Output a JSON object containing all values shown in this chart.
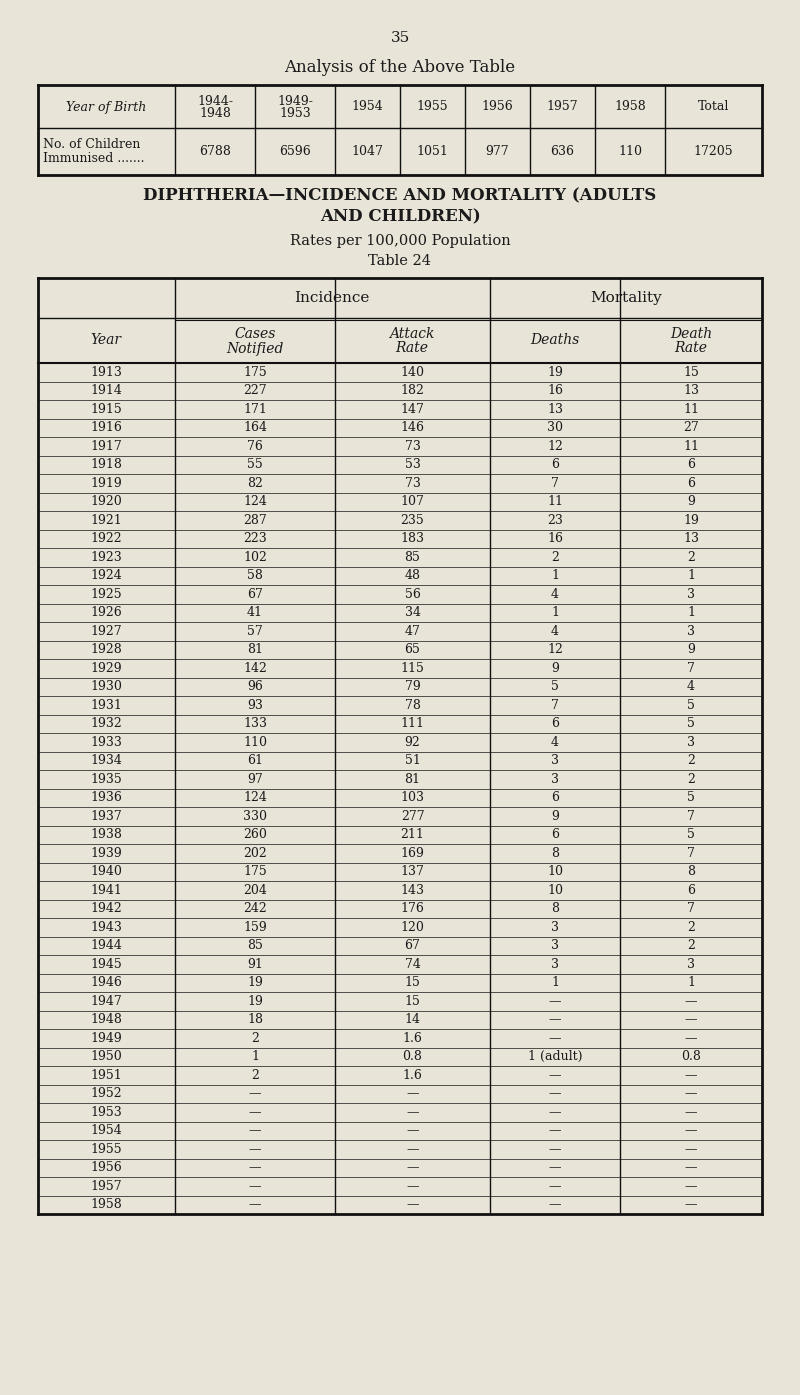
{
  "page_number": "35",
  "title1": "Analysis of the Above Table",
  "table1_row1_values": [
    "6788",
    "6596",
    "1047",
    "1051",
    "977",
    "636",
    "110",
    "17205"
  ],
  "title2_line1": "DIPHTHERIA—INCIDENCE AND MORTALITY (ADULTS",
  "title2_line2": "AND CHILDREN)",
  "title3": "Rates per 100,000 Population",
  "title4": "Table 24",
  "table2_data": [
    [
      "1913",
      "175",
      "140",
      "19",
      "15"
    ],
    [
      "1914",
      "227",
      "182",
      "16",
      "13"
    ],
    [
      "1915",
      "171",
      "147",
      "13",
      "11"
    ],
    [
      "1916",
      "164",
      "146",
      "30",
      "27"
    ],
    [
      "1917",
      "76",
      "73",
      "12",
      "11"
    ],
    [
      "1918",
      "55",
      "53",
      "6",
      "6"
    ],
    [
      "1919",
      "82",
      "73",
      "7",
      "6"
    ],
    [
      "1920",
      "124",
      "107",
      "11",
      "9"
    ],
    [
      "1921",
      "287",
      "235",
      "23",
      "19"
    ],
    [
      "1922",
      "223",
      "183",
      "16",
      "13"
    ],
    [
      "1923",
      "102",
      "85",
      "2",
      "2"
    ],
    [
      "1924",
      "58",
      "48",
      "1",
      "1"
    ],
    [
      "1925",
      "67",
      "56",
      "4",
      "3"
    ],
    [
      "1926",
      "41",
      "34",
      "1",
      "1"
    ],
    [
      "1927",
      "57",
      "47",
      "4",
      "3"
    ],
    [
      "1928",
      "81",
      "65",
      "12",
      "9"
    ],
    [
      "1929",
      "142",
      "115",
      "9",
      "7"
    ],
    [
      "1930",
      "96",
      "79",
      "5",
      "4"
    ],
    [
      "1931",
      "93",
      "78",
      "7",
      "5"
    ],
    [
      "1932",
      "133",
      "111",
      "6",
      "5"
    ],
    [
      "1933",
      "110",
      "92",
      "4",
      "3"
    ],
    [
      "1934",
      "61",
      "51",
      "3",
      "2"
    ],
    [
      "1935",
      "97",
      "81",
      "3",
      "2"
    ],
    [
      "1936",
      "124",
      "103",
      "6",
      "5"
    ],
    [
      "1937",
      "330",
      "277",
      "9",
      "7"
    ],
    [
      "1938",
      "260",
      "211",
      "6",
      "5"
    ],
    [
      "1939",
      "202",
      "169",
      "8",
      "7"
    ],
    [
      "1940",
      "175",
      "137",
      "10",
      "8"
    ],
    [
      "1941",
      "204",
      "143",
      "10",
      "6"
    ],
    [
      "1942",
      "242",
      "176",
      "8",
      "7"
    ],
    [
      "1943",
      "159",
      "120",
      "3",
      "2"
    ],
    [
      "1944",
      "85",
      "67",
      "3",
      "2"
    ],
    [
      "1945",
      "91",
      "74",
      "3",
      "3"
    ],
    [
      "1946",
      "19",
      "15",
      "1",
      "1"
    ],
    [
      "1947",
      "19",
      "15",
      "—",
      "—"
    ],
    [
      "1948",
      "18",
      "14",
      "—",
      "—"
    ],
    [
      "1949",
      "2",
      "1.6",
      "—",
      "—"
    ],
    [
      "1950",
      "1",
      "0.8",
      "1 (adult)",
      "0.8"
    ],
    [
      "1951",
      "2",
      "1.6",
      "—",
      "—"
    ],
    [
      "1952",
      "—",
      "—",
      "—",
      "—"
    ],
    [
      "1953",
      "—",
      "—",
      "—",
      "—"
    ],
    [
      "1954",
      "—",
      "—",
      "—",
      "—"
    ],
    [
      "1955",
      "—",
      "—",
      "—",
      "—"
    ],
    [
      "1956",
      "—",
      "—",
      "—",
      "—"
    ],
    [
      "1957",
      "—",
      "—",
      "—",
      "—"
    ],
    [
      "1958",
      "—",
      "—",
      "—",
      "—"
    ]
  ],
  "bg_color": "#e8e4d8",
  "text_color": "#1a1a1a",
  "border_color": "#111111"
}
